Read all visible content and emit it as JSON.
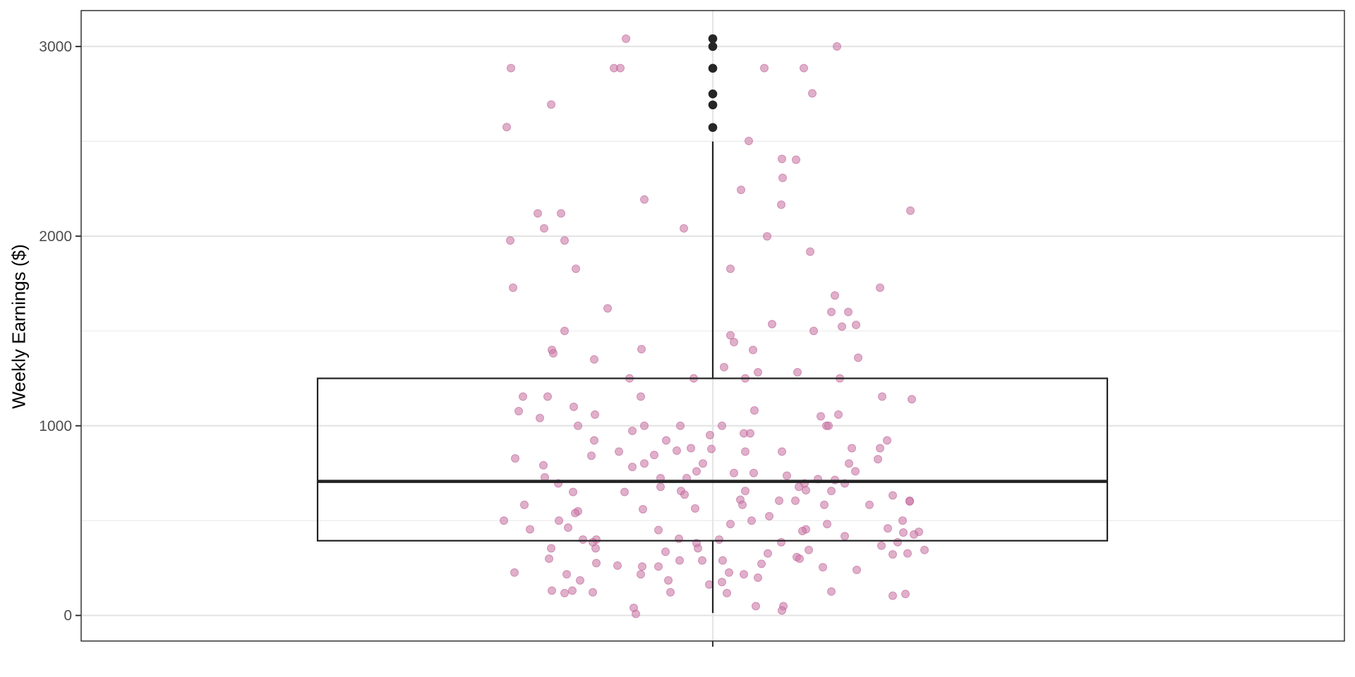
{
  "chart_data": {
    "type": "boxplot",
    "title": "",
    "xlabel": "",
    "ylabel": "Weekly Earnings ($)",
    "ylim": [
      -135,
      3190
    ],
    "y_ticks": [
      0,
      1000,
      2000,
      3000
    ],
    "y_tick_labels": [
      "0",
      "1000",
      "2000",
      "3000"
    ],
    "minor_gridlines": [
      500,
      1500,
      2500
    ],
    "grid": true,
    "legend": null,
    "categories": [
      ""
    ],
    "box": {
      "q1": 394,
      "median": 707,
      "q3": 1250,
      "whisker_low": 13,
      "whisker_high": 2499,
      "box_color": "#222222",
      "fill": "#ffffff"
    },
    "outliers": [
      3041,
      3000,
      2885,
      2750,
      2692,
      2573
    ],
    "outlier_color": "#262626",
    "jitter_points_color": "#cc79a7",
    "jitter_points_alpha": 0.6,
    "jitter_points": [
      [
        -123,
        3041
      ],
      [
        -286,
        2886
      ],
      [
        -140,
        2886
      ],
      [
        -131,
        2886
      ],
      [
        73,
        2886
      ],
      [
        129,
        2886
      ],
      [
        176,
        3000
      ],
      [
        -229,
        2694
      ],
      [
        -292,
        2575
      ],
      [
        141,
        2753
      ],
      [
        51,
        2502
      ],
      [
        98,
        2407
      ],
      [
        118,
        2403
      ],
      [
        99,
        2307
      ],
      [
        40,
        2244
      ],
      [
        -97,
        2193
      ],
      [
        97,
        2166
      ],
      [
        -248,
        2120
      ],
      [
        -215,
        2120
      ],
      [
        280,
        2134
      ],
      [
        -239,
        2041
      ],
      [
        -41,
        2041
      ],
      [
        -287,
        1977
      ],
      [
        -210,
        1977
      ],
      [
        77,
        1999
      ],
      [
        138,
        1918
      ],
      [
        -194,
        1828
      ],
      [
        25,
        1828
      ],
      [
        -283,
        1728
      ],
      [
        237,
        1728
      ],
      [
        173,
        1687
      ],
      [
        -149,
        1619
      ],
      [
        168,
        1600
      ],
      [
        192,
        1600
      ],
      [
        84,
        1536
      ],
      [
        183,
        1523
      ],
      [
        203,
        1532
      ],
      [
        -210,
        1500
      ],
      [
        143,
        1500
      ],
      [
        25,
        1477
      ],
      [
        30,
        1441
      ],
      [
        -228,
        1400
      ],
      [
        -226,
        1382
      ],
      [
        -101,
        1404
      ],
      [
        57,
        1400
      ],
      [
        206,
        1359
      ],
      [
        -168,
        1350
      ],
      [
        16,
        1309
      ],
      [
        64,
        1282
      ],
      [
        120,
        1282
      ],
      [
        -118,
        1250
      ],
      [
        -27,
        1250
      ],
      [
        46,
        1250
      ],
      [
        180,
        1250
      ],
      [
        -269,
        1154
      ],
      [
        -234,
        1154
      ],
      [
        -102,
        1154
      ],
      [
        240,
        1154
      ],
      [
        282,
        1140
      ],
      [
        -275,
        1077
      ],
      [
        59,
        1081
      ],
      [
        -197,
        1100
      ],
      [
        -167,
        1059
      ],
      [
        -245,
        1041
      ],
      [
        153,
        1050
      ],
      [
        178,
        1059
      ],
      [
        -191,
        1000
      ],
      [
        -97,
        1000
      ],
      [
        -46,
        1000
      ],
      [
        13,
        1000
      ],
      [
        161,
        1000
      ],
      [
        164,
        1000
      ],
      [
        -114,
        973
      ],
      [
        -4,
        951
      ],
      [
        44,
        960
      ],
      [
        53,
        960
      ],
      [
        -168,
        923
      ],
      [
        247,
        923
      ],
      [
        -66,
        923
      ],
      [
        237,
        882
      ],
      [
        -31,
        882
      ],
      [
        -2,
        878
      ],
      [
        197,
        882
      ],
      [
        -133,
        864
      ],
      [
        -83,
        846
      ],
      [
        -172,
        842
      ],
      [
        98,
        864
      ],
      [
        46,
        864
      ],
      [
        -280,
        828
      ],
      [
        234,
        824
      ],
      [
        -51,
        869
      ],
      [
        -14,
        801
      ],
      [
        -240,
        792
      ],
      [
        -114,
        783
      ],
      [
        -97,
        801
      ],
      [
        193,
        801
      ],
      [
        -23,
        760
      ],
      [
        30,
        751
      ],
      [
        58,
        751
      ],
      [
        202,
        760
      ],
      [
        -238,
        728
      ],
      [
        105,
        737
      ],
      [
        -74,
        724
      ],
      [
        -37,
        724
      ],
      [
        149,
        719
      ],
      [
        173,
        714
      ],
      [
        187,
        696
      ],
      [
        -219,
        696
      ],
      [
        130,
        696
      ],
      [
        122,
        678
      ],
      [
        132,
        660
      ],
      [
        -74,
        678
      ],
      [
        46,
        656
      ],
      [
        168,
        656
      ],
      [
        -45,
        656
      ],
      [
        -40,
        637
      ],
      [
        -125,
        651
      ],
      [
        -198,
        651
      ],
      [
        255,
        633
      ],
      [
        -267,
        583
      ],
      [
        39,
        610
      ],
      [
        42,
        583
      ],
      [
        94,
        605
      ],
      [
        117,
        605
      ],
      [
        158,
        583
      ],
      [
        222,
        583
      ],
      [
        279,
        605
      ],
      [
        279,
        601
      ],
      [
        -191,
        549
      ],
      [
        -195,
        540
      ],
      [
        -25,
        564
      ],
      [
        -296,
        500
      ],
      [
        -218,
        500
      ],
      [
        -99,
        560
      ],
      [
        55,
        500
      ],
      [
        80,
        523
      ],
      [
        162,
        482
      ],
      [
        25,
        482
      ],
      [
        -259,
        454
      ],
      [
        -205,
        463
      ],
      [
        -77,
        450
      ],
      [
        132,
        454
      ],
      [
        127,
        445
      ],
      [
        248,
        459
      ],
      [
        269,
        500
      ],
      [
        292,
        441
      ],
      [
        270,
        437
      ],
      [
        187,
        418
      ],
      [
        285,
        427
      ],
      [
        -184,
        400
      ],
      [
        -165,
        400
      ],
      [
        -170,
        386
      ],
      [
        -48,
        404
      ],
      [
        9,
        400
      ],
      [
        -23,
        381
      ],
      [
        97,
        386
      ],
      [
        262,
        386
      ],
      [
        239,
        368
      ],
      [
        -229,
        354
      ],
      [
        -166,
        354
      ],
      [
        -21,
        354
      ],
      [
        136,
        345
      ],
      [
        -67,
        336
      ],
      [
        78,
        327
      ],
      [
        300,
        345
      ],
      [
        255,
        322
      ],
      [
        276,
        327
      ],
      [
        -232,
        299
      ],
      [
        119,
        308
      ],
      [
        123,
        299
      ],
      [
        -47,
        290
      ],
      [
        -15,
        290
      ],
      [
        14,
        290
      ],
      [
        -165,
        276
      ],
      [
        69,
        272
      ],
      [
        -135,
        263
      ],
      [
        -100,
        258
      ],
      [
        -77,
        258
      ],
      [
        156,
        254
      ],
      [
        204,
        240
      ],
      [
        -281,
        226
      ],
      [
        -207,
        217
      ],
      [
        -102,
        217
      ],
      [
        23,
        226
      ],
      [
        44,
        217
      ],
      [
        64,
        199
      ],
      [
        -188,
        185
      ],
      [
        -63,
        185
      ],
      [
        13,
        176
      ],
      [
        -5,
        163
      ],
      [
        -228,
        131
      ],
      [
        -199,
        131
      ],
      [
        -210,
        118
      ],
      [
        -170,
        122
      ],
      [
        -60,
        122
      ],
      [
        20,
        118
      ],
      [
        168,
        126
      ],
      [
        273,
        113
      ],
      [
        255,
        104
      ],
      [
        61,
        49
      ],
      [
        -112,
        40
      ],
      [
        100,
        49
      ],
      [
        98,
        26
      ],
      [
        -109,
        8
      ]
    ]
  },
  "axes": {
    "ylabel": "Weekly Earnings ($)",
    "y_ticks": [
      "0",
      "1000",
      "2000",
      "3000"
    ]
  }
}
